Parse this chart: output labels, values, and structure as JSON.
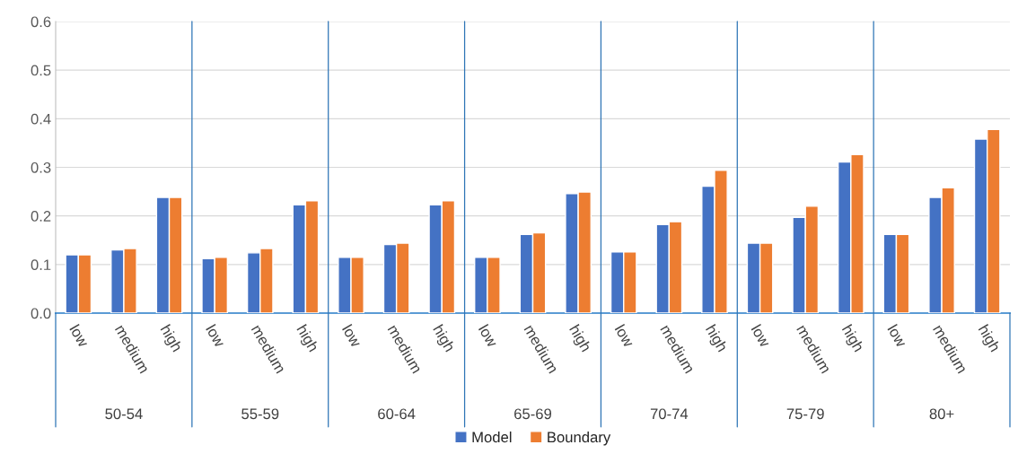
{
  "chart_data": {
    "type": "bar",
    "categories": [
      "low",
      "medium",
      "high",
      "low",
      "medium",
      "high",
      "low",
      "medium",
      "high",
      "low",
      "medium",
      "high",
      "low",
      "medium",
      "high",
      "low",
      "medium",
      "high",
      "low",
      "medium",
      "high"
    ],
    "series": [
      {
        "name": "Model",
        "color": "#4472c4",
        "values": [
          0.12,
          0.13,
          0.238,
          0.112,
          0.124,
          0.223,
          0.115,
          0.141,
          0.223,
          0.115,
          0.162,
          0.246,
          0.126,
          0.182,
          0.261,
          0.144,
          0.197,
          0.311,
          0.162,
          0.238,
          0.358
        ]
      },
      {
        "name": "Boundary",
        "color": "#ed7d31",
        "values": [
          0.12,
          0.133,
          0.238,
          0.115,
          0.133,
          0.231,
          0.115,
          0.144,
          0.231,
          0.115,
          0.165,
          0.249,
          0.126,
          0.188,
          0.294,
          0.144,
          0.22,
          0.326,
          0.162,
          0.258,
          0.378
        ]
      }
    ],
    "annotations": [
      "50-54",
      "55-59",
      "60-64",
      "65-69",
      "70-74",
      "75-79",
      "80+"
    ],
    "ylim": [
      0,
      0.6
    ],
    "yticks": [
      {
        "value": 0,
        "label": "0.0"
      },
      {
        "value": 0.1,
        "label": "0.1"
      },
      {
        "value": 0.2,
        "label": "0.2"
      },
      {
        "value": 0.3,
        "label": "0.3"
      },
      {
        "value": 0.4,
        "label": "0.4"
      },
      {
        "value": 0.5,
        "label": "0.5"
      },
      {
        "value": 0.6,
        "label": "0.6"
      }
    ],
    "grid": "y",
    "legend": "bottom"
  }
}
